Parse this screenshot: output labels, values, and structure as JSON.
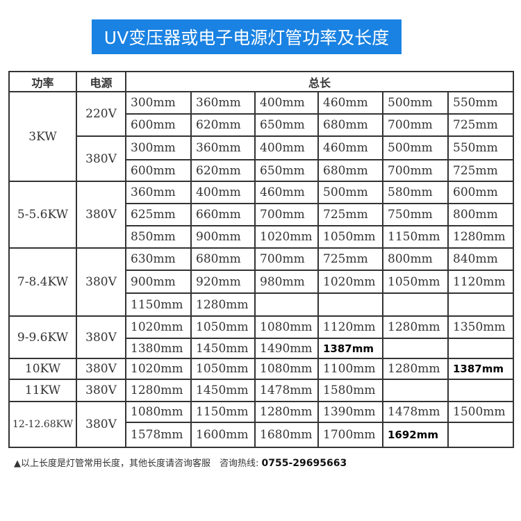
{
  "title": "UV变压器或电子电源灯管功率及长度",
  "headers": {
    "power": "功率",
    "supply": "电源",
    "length": "总长"
  },
  "groups": [
    {
      "power": "3KW",
      "supplies": [
        {
          "voltage": "220V",
          "rows": [
            [
              "300mm",
              "360mm",
              "400mm",
              "460mm",
              "500mm",
              "550mm"
            ],
            [
              "600mm",
              "620mm",
              "650mm",
              "680mm",
              "700mm",
              "725mm"
            ]
          ]
        },
        {
          "voltage": "380V",
          "rows": [
            [
              "300mm",
              "360mm",
              "400mm",
              "460mm",
              "500mm",
              "550mm"
            ],
            [
              "600mm",
              "620mm",
              "650mm",
              "680mm",
              "700mm",
              "725mm"
            ]
          ]
        }
      ]
    },
    {
      "power": "5-5.6KW",
      "supplies": [
        {
          "voltage": "380V",
          "rows": [
            [
              "360mm",
              "400mm",
              "460mm",
              "500mm",
              "580mm",
              "600mm"
            ],
            [
              "625mm",
              "660mm",
              "700mm",
              "725mm",
              "750mm",
              "800mm"
            ],
            [
              "850mm",
              "900mm",
              "1020mm",
              "1050mm",
              "1150mm",
              "1280mm"
            ]
          ]
        }
      ]
    },
    {
      "power": "7-8.4KW",
      "supplies": [
        {
          "voltage": "380V",
          "rows": [
            [
              "630mm",
              "680mm",
              "700mm",
              "725mm",
              "800mm",
              "840mm"
            ],
            [
              "900mm",
              "920mm",
              "980mm",
              "1020mm",
              "1050mm",
              "1120mm"
            ],
            [
              "1150mm",
              "1280mm",
              "",
              "",
              "",
              ""
            ]
          ]
        }
      ]
    },
    {
      "power": "9-9.6KW",
      "supplies": [
        {
          "voltage": "380V",
          "rows": [
            [
              "1020mm",
              "1050mm",
              "1080mm",
              "1120mm",
              "1280mm",
              "1350mm"
            ],
            [
              "1380mm",
              "1450mm",
              "1490mm",
              "1387mm",
              "",
              ""
            ]
          ]
        }
      ]
    },
    {
      "power": "10KW",
      "supplies": [
        {
          "voltage": "380V",
          "rows": [
            [
              "1020mm",
              "1050mm",
              "1080mm",
              "1100mm",
              "1280mm",
              "1387mm"
            ]
          ]
        }
      ]
    },
    {
      "power": "11KW",
      "supplies": [
        {
          "voltage": "380V",
          "rows": [
            [
              "1280mm",
              "1450mm",
              "1478mm",
              "1580mm",
              "",
              ""
            ]
          ]
        }
      ]
    },
    {
      "power": "12-12.68KW",
      "supplies": [
        {
          "voltage": "380V",
          "rows": [
            [
              "1080mm",
              "1150mm",
              "1280mm",
              "1390mm",
              "1478mm",
              "1500mm"
            ],
            [
              "1578mm",
              "1600mm",
              "1680mm",
              "1700mm",
              "1692mm",
              ""
            ]
          ]
        }
      ]
    }
  ],
  "note": {
    "text": "▲以上长度是灯管常用长度，其他长度请咨询客服　咨询热线:",
    "phone": "0755-29695663"
  }
}
